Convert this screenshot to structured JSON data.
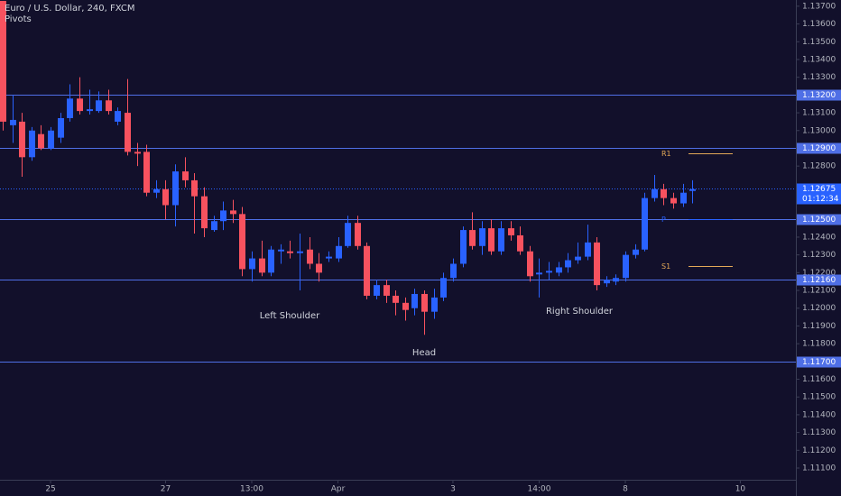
{
  "chart_data": {
    "type": "candlestick",
    "title": "Euro / U.S. Dollar, 240, FXCM",
    "subtitle": "Pivots",
    "up_color": "#2962ff",
    "down_color": "#f7525f",
    "open": [
      1.1373,
      1.1303,
      1.1305,
      1.1285,
      1.1298,
      1.129,
      1.1296,
      1.1307,
      1.1318,
      1.1311,
      1.1311,
      1.1317,
      1.1305,
      1.131,
      1.1288,
      1.1288,
      1.1265,
      1.1267,
      1.1258,
      1.1277,
      1.1272,
      1.1263,
      1.1244,
      1.1249,
      1.1255,
      1.1253,
      1.1222,
      1.1228,
      1.122,
      1.1232,
      1.1232,
      1.1231,
      1.1233,
      1.1225,
      1.1228,
      1.1228,
      1.1235,
      1.1248,
      1.1235,
      1.1207,
      1.1213,
      1.1207,
      1.1203,
      1.12,
      1.1208,
      1.1198,
      1.1206,
      1.1217,
      1.1225,
      1.1244,
      1.1235,
      1.1245,
      1.1232,
      1.1245,
      1.1241,
      1.1232,
      1.1219,
      1.122,
      1.122,
      1.1223,
      1.1227,
      1.1229,
      1.1237,
      1.1214,
      1.1215,
      1.1217,
      1.123,
      1.1233,
      1.1262,
      1.1267,
      1.1262,
      1.1259,
      1.1266
    ],
    "high": [
      1.1373,
      1.132,
      1.131,
      1.1302,
      1.1303,
      1.1302,
      1.131,
      1.1326,
      1.133,
      1.1323,
      1.1322,
      1.1323,
      1.1313,
      1.1329,
      1.1293,
      1.1292,
      1.1272,
      1.1272,
      1.1281,
      1.1285,
      1.1276,
      1.1268,
      1.1252,
      1.126,
      1.1261,
      1.1257,
      1.1232,
      1.1238,
      1.1235,
      1.1236,
      1.1238,
      1.1242,
      1.124,
      1.1231,
      1.1232,
      1.124,
      1.1252,
      1.1252,
      1.1237,
      1.1216,
      1.1216,
      1.121,
      1.1206,
      1.1211,
      1.121,
      1.1211,
      1.122,
      1.1228,
      1.1246,
      1.1254,
      1.1249,
      1.125,
      1.1249,
      1.1249,
      1.1246,
      1.1235,
      1.1228,
      1.1226,
      1.1226,
      1.1231,
      1.1237,
      1.1247,
      1.124,
      1.1218,
      1.1219,
      1.1232,
      1.1236,
      1.1265,
      1.1275,
      1.127,
      1.1265,
      1.127,
      1.1272
    ],
    "low": [
      1.13,
      1.1293,
      1.1274,
      1.1283,
      1.1289,
      1.1289,
      1.1293,
      1.1305,
      1.1309,
      1.1309,
      1.131,
      1.1309,
      1.1303,
      1.1286,
      1.128,
      1.1263,
      1.1262,
      1.125,
      1.1246,
      1.1268,
      1.1242,
      1.124,
      1.1243,
      1.1244,
      1.1248,
      1.1218,
      1.1215,
      1.1218,
      1.1218,
      1.1225,
      1.1228,
      1.121,
      1.1222,
      1.1215,
      1.1226,
      1.1226,
      1.1234,
      1.1233,
      1.1205,
      1.1205,
      1.1203,
      1.1196,
      1.1193,
      1.1196,
      1.1185,
      1.1194,
      1.1204,
      1.1215,
      1.1223,
      1.1233,
      1.123,
      1.123,
      1.123,
      1.1238,
      1.123,
      1.1215,
      1.1206,
      1.1216,
      1.1218,
      1.122,
      1.1225,
      1.1227,
      1.121,
      1.1212,
      1.1213,
      1.1215,
      1.1228,
      1.1232,
      1.126,
      1.1258,
      1.1256,
      1.1257,
      1.1259
    ],
    "close": [
      1.1305,
      1.1306,
      1.1285,
      1.13,
      1.129,
      1.13,
      1.1307,
      1.1318,
      1.1311,
      1.1312,
      1.1317,
      1.1311,
      1.1311,
      1.1288,
      1.1287,
      1.1265,
      1.1267,
      1.1258,
      1.1277,
      1.1272,
      1.1263,
      1.1245,
      1.1249,
      1.1255,
      1.1253,
      1.1222,
      1.1228,
      1.122,
      1.1233,
      1.1233,
      1.1231,
      1.1232,
      1.1225,
      1.122,
      1.1229,
      1.1235,
      1.1248,
      1.1235,
      1.1207,
      1.1213,
      1.1207,
      1.1203,
      1.1199,
      1.1208,
      1.1198,
      1.1206,
      1.1217,
      1.1225,
      1.1244,
      1.1235,
      1.1245,
      1.1232,
      1.1245,
      1.1241,
      1.1232,
      1.1218,
      1.122,
      1.1221,
      1.1223,
      1.1227,
      1.1229,
      1.1237,
      1.1213,
      1.1216,
      1.1217,
      1.123,
      1.1233,
      1.1262,
      1.1267,
      1.1262,
      1.1259,
      1.1265,
      1.1267
    ],
    "xlim": [
      -0.28,
      82.8
    ],
    "xticks": [
      {
        "value": 5,
        "label": "25"
      },
      {
        "value": 17,
        "label": "27"
      },
      {
        "value": 26,
        "label": "13:00"
      },
      {
        "value": 35,
        "label": "Apr"
      },
      {
        "value": 47,
        "label": "3"
      },
      {
        "value": 56,
        "label": "14:00"
      },
      {
        "value": 65,
        "label": "8"
      },
      {
        "value": 77,
        "label": "10"
      }
    ],
    "ylim": [
      1.11034,
      1.13735
    ],
    "yticks": [
      {
        "value": 1.137,
        "label": "1.13700"
      },
      {
        "value": 1.136,
        "label": "1.13600"
      },
      {
        "value": 1.135,
        "label": "1.13500"
      },
      {
        "value": 1.134,
        "label": "1.13400"
      },
      {
        "value": 1.133,
        "label": "1.13300"
      },
      {
        "value": 1.131,
        "label": "1.13100"
      },
      {
        "value": 1.13,
        "label": "1.13000"
      },
      {
        "value": 1.128,
        "label": "1.12800"
      },
      {
        "value": 1.124,
        "label": "1.12400"
      },
      {
        "value": 1.123,
        "label": "1.12300"
      },
      {
        "value": 1.122,
        "label": "1.12200"
      },
      {
        "value": 1.121,
        "label": "1.12100"
      },
      {
        "value": 1.12,
        "label": "1.12000"
      },
      {
        "value": 1.119,
        "label": "1.11900"
      },
      {
        "value": 1.118,
        "label": "1.11800"
      },
      {
        "value": 1.116,
        "label": "1.11600"
      },
      {
        "value": 1.115,
        "label": "1.11500"
      },
      {
        "value": 1.114,
        "label": "1.11400"
      },
      {
        "value": 1.113,
        "label": "1.11300"
      },
      {
        "value": 1.112,
        "label": "1.11200"
      },
      {
        "value": 1.111,
        "label": "1.11100"
      }
    ],
    "levels": [
      {
        "value": 1.132,
        "label": "1.13200"
      },
      {
        "value": 1.129,
        "label": "1.12900"
      },
      {
        "value": 1.125,
        "label": "1.12500"
      },
      {
        "value": 1.1216,
        "label": "1.12160"
      },
      {
        "value": 1.117,
        "label": "1.11700"
      }
    ],
    "level_color": "#4f6fe6",
    "current_price": {
      "value": 1.12675,
      "label": "1.12675",
      "countdown": "01:12:34"
    },
    "pivots": [
      {
        "name": "R1",
        "value": 1.12874,
        "color": "#e3a857"
      },
      {
        "name": "P",
        "value": 1.125,
        "color": "#2962ff"
      },
      {
        "name": "S1",
        "value": 1.12235,
        "color": "#e3a857"
      }
    ],
    "annotations": [
      "Left Shoulder",
      "Head",
      "Right Shoulder"
    ]
  }
}
